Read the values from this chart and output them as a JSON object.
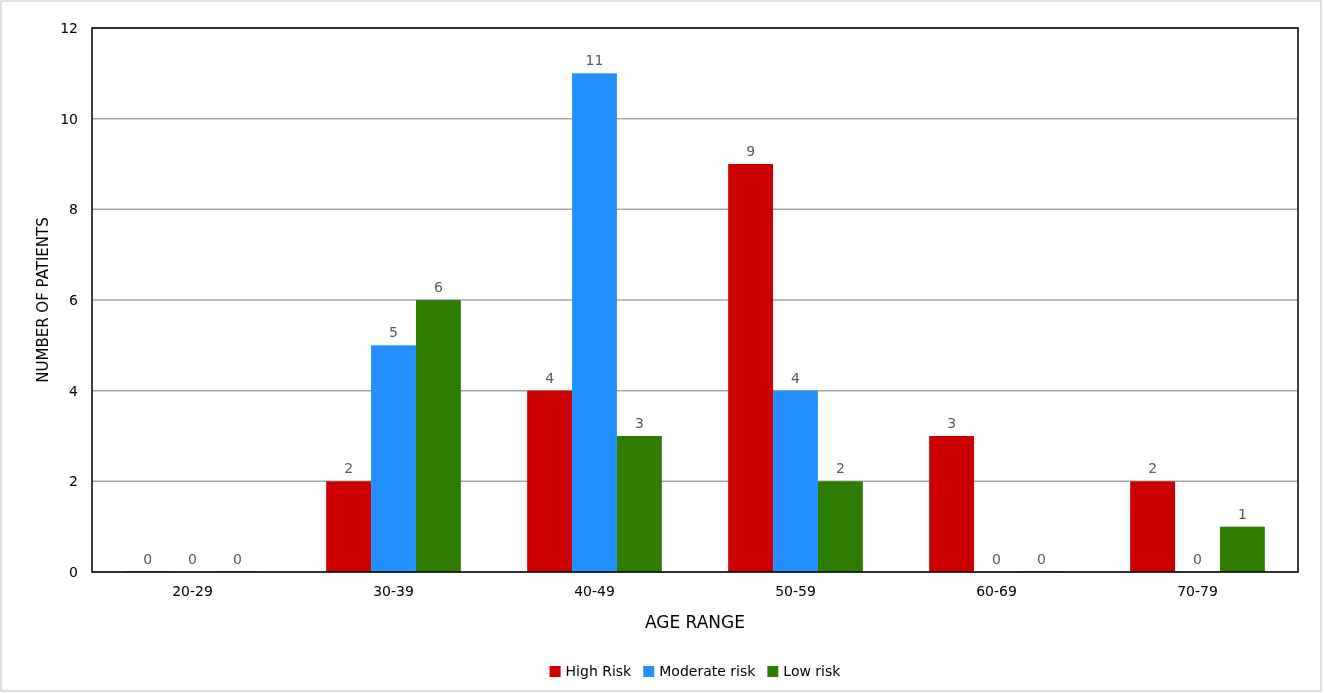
{
  "chart_data": {
    "type": "bar",
    "xlabel": "AGE RANGE",
    "ylabel": "NUMBER OF PATIENTS",
    "categories": [
      "20-29",
      "30-39",
      "40-49",
      "50-59",
      "60-69",
      "70-79"
    ],
    "series": [
      {
        "name": "High Risk",
        "color": "#cc0000",
        "values": [
          0,
          2,
          4,
          9,
          3,
          2
        ]
      },
      {
        "name": "Moderate risk",
        "color": "#2490ff",
        "values": [
          0,
          5,
          11,
          4,
          0,
          0
        ]
      },
      {
        "name": "Low risk",
        "color": "#2e7d00",
        "values": [
          0,
          6,
          3,
          2,
          0,
          1
        ]
      }
    ],
    "ylim": [
      0,
      12
    ],
    "yticks": [
      0,
      2,
      4,
      6,
      8,
      10,
      12
    ],
    "grid": "y",
    "legend": "bottom",
    "data_labels": true
  }
}
